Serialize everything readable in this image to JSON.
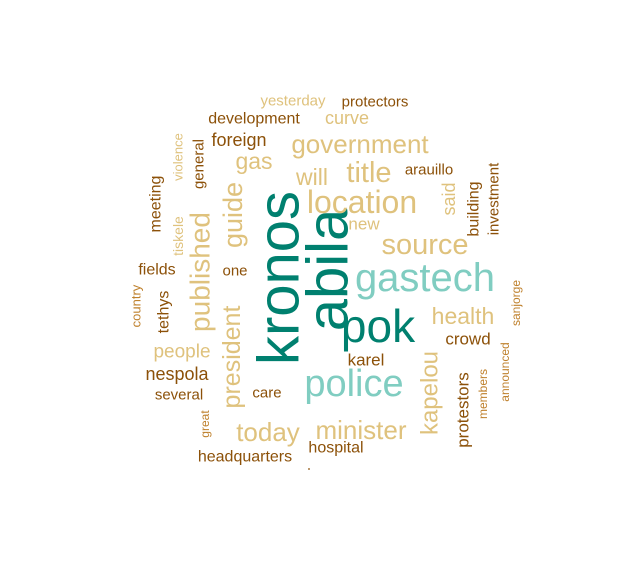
{
  "chart_data": {
    "type": "wordcloud",
    "title": "",
    "palette": {
      "dark_teal": "#00806f",
      "light_teal": "#80cdc1",
      "dark_brown": "#8c5109",
      "medium_brown": "#bf812d",
      "tan": "#dfc27d"
    },
    "words": [
      {
        "text": "kronos",
        "color": "dark_teal",
        "rotated": true
      },
      {
        "text": "abila",
        "color": "dark_teal",
        "rotated": true
      },
      {
        "text": "pok",
        "color": "dark_teal",
        "rotated": false
      },
      {
        "text": "gastech",
        "color": "light_teal",
        "rotated": false
      },
      {
        "text": "police",
        "color": "light_teal",
        "rotated": false
      },
      {
        "text": "location",
        "color": "tan",
        "rotated": false
      },
      {
        "text": "government",
        "color": "tan",
        "rotated": false
      },
      {
        "text": "source",
        "color": "tan",
        "rotated": false
      },
      {
        "text": "published",
        "color": "tan",
        "rotated": true
      },
      {
        "text": "guide",
        "color": "tan",
        "rotated": true
      },
      {
        "text": "president",
        "color": "tan",
        "rotated": true
      },
      {
        "text": "title",
        "color": "tan",
        "rotated": false
      },
      {
        "text": "minister",
        "color": "tan",
        "rotated": false
      },
      {
        "text": "today",
        "color": "tan",
        "rotated": false
      },
      {
        "text": "kapelou",
        "color": "tan",
        "rotated": true
      },
      {
        "text": "health",
        "color": "tan",
        "rotated": false
      },
      {
        "text": "will",
        "color": "tan",
        "rotated": false
      },
      {
        "text": "gas",
        "color": "tan",
        "rotated": false
      },
      {
        "text": "people",
        "color": "tan",
        "rotated": false
      },
      {
        "text": "curve",
        "color": "tan",
        "rotated": false
      },
      {
        "text": "new",
        "color": "tan",
        "rotated": false
      },
      {
        "text": "said",
        "color": "tan",
        "rotated": true
      },
      {
        "text": "yesterday",
        "color": "tan",
        "rotated": false
      },
      {
        "text": "tiskele",
        "color": "tan",
        "rotated": true
      },
      {
        "text": "violence",
        "color": "tan",
        "rotated": true
      },
      {
        "text": "country",
        "color": "medium_brown",
        "rotated": true
      },
      {
        "text": "great",
        "color": "medium_brown",
        "rotated": true
      },
      {
        "text": "announced",
        "color": "medium_brown",
        "rotated": true
      },
      {
        "text": "sanjorge",
        "color": "medium_brown",
        "rotated": true
      },
      {
        "text": "members",
        "color": "medium_brown",
        "rotated": true
      },
      {
        "text": "foreign",
        "color": "dark_brown",
        "rotated": false
      },
      {
        "text": "development",
        "color": "dark_brown",
        "rotated": false
      },
      {
        "text": "protectors",
        "color": "dark_brown",
        "rotated": false
      },
      {
        "text": "arauillo",
        "color": "dark_brown",
        "rotated": false
      },
      {
        "text": "building",
        "color": "dark_brown",
        "rotated": true
      },
      {
        "text": "investment",
        "color": "dark_brown",
        "rotated": true
      },
      {
        "text": "crowd",
        "color": "dark_brown",
        "rotated": false
      },
      {
        "text": "protestors",
        "color": "dark_brown",
        "rotated": true
      },
      {
        "text": "karel",
        "color": "dark_brown",
        "rotated": false
      },
      {
        "text": "nespola",
        "color": "dark_brown",
        "rotated": false
      },
      {
        "text": "several",
        "color": "dark_brown",
        "rotated": false
      },
      {
        "text": "care",
        "color": "dark_brown",
        "rotated": false
      },
      {
        "text": "headquarters",
        "color": "dark_brown",
        "rotated": false
      },
      {
        "text": "hospital",
        "color": "dark_brown",
        "rotated": false
      },
      {
        "text": "fields",
        "color": "dark_brown",
        "rotated": false
      },
      {
        "text": "one",
        "color": "dark_brown",
        "rotated": false
      },
      {
        "text": "tethys",
        "color": "dark_brown",
        "rotated": true
      },
      {
        "text": "meeting",
        "color": "dark_brown",
        "rotated": true
      },
      {
        "text": "general",
        "color": "dark_brown",
        "rotated": true
      }
    ]
  }
}
